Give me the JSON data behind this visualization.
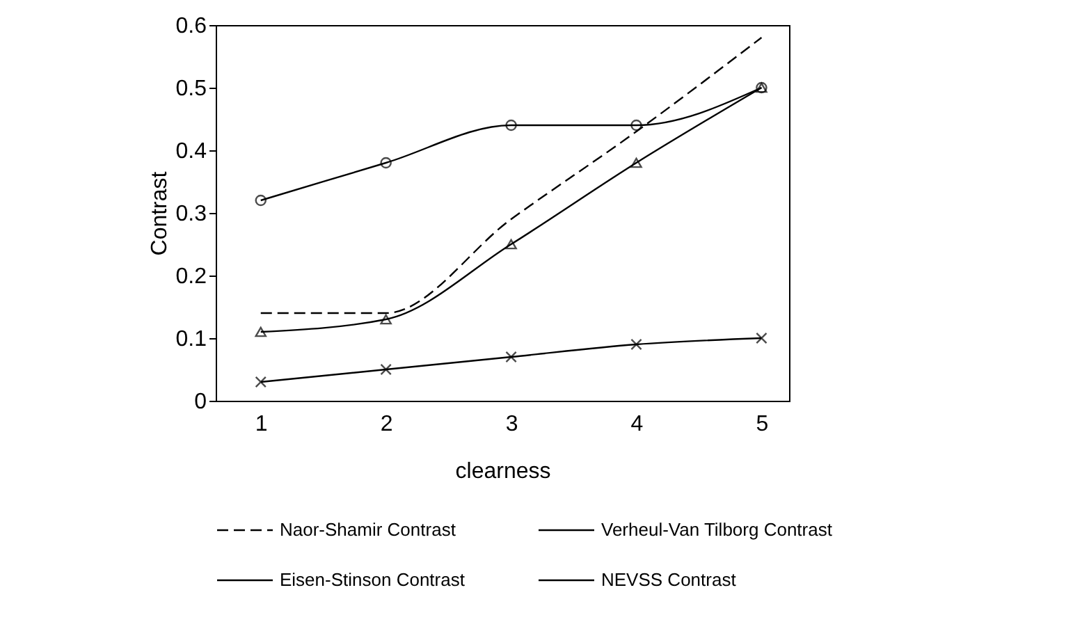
{
  "chart_data": {
    "type": "line",
    "xlabel": "clearness",
    "ylabel": "Contrast",
    "x": [
      1,
      2,
      3,
      4,
      5
    ],
    "xlim": [
      0.64,
      5.22
    ],
    "xticks": [
      1,
      2,
      3,
      4,
      5
    ],
    "ylim": [
      0,
      0.6
    ],
    "yticks": [
      0,
      0.1,
      0.2,
      0.3,
      0.4,
      0.5,
      0.6
    ],
    "grid": false,
    "legend": "bottom",
    "series": [
      {
        "name": "Naor-Shamir Contrast",
        "color": "#000000",
        "marker": "none",
        "line_style": "dashed",
        "values": [
          0.14,
          0.14,
          0.29,
          0.43,
          0.58
        ]
      },
      {
        "name": "Verheul-Van Tilborg Contrast",
        "color": "#000000",
        "marker": "cross",
        "line_style": "solid",
        "values": [
          0.03,
          0.05,
          0.07,
          0.09,
          0.1
        ]
      },
      {
        "name": "Eisen-Stinson Contrast",
        "color": "#000000",
        "marker": "triangle",
        "line_style": "solid",
        "values": [
          0.11,
          0.13,
          0.25,
          0.38,
          0.5
        ]
      },
      {
        "name": "NEVSS Contrast",
        "color": "#000000",
        "marker": "circle",
        "line_style": "solid",
        "values": [
          0.32,
          0.38,
          0.44,
          0.44,
          0.5
        ]
      }
    ]
  }
}
